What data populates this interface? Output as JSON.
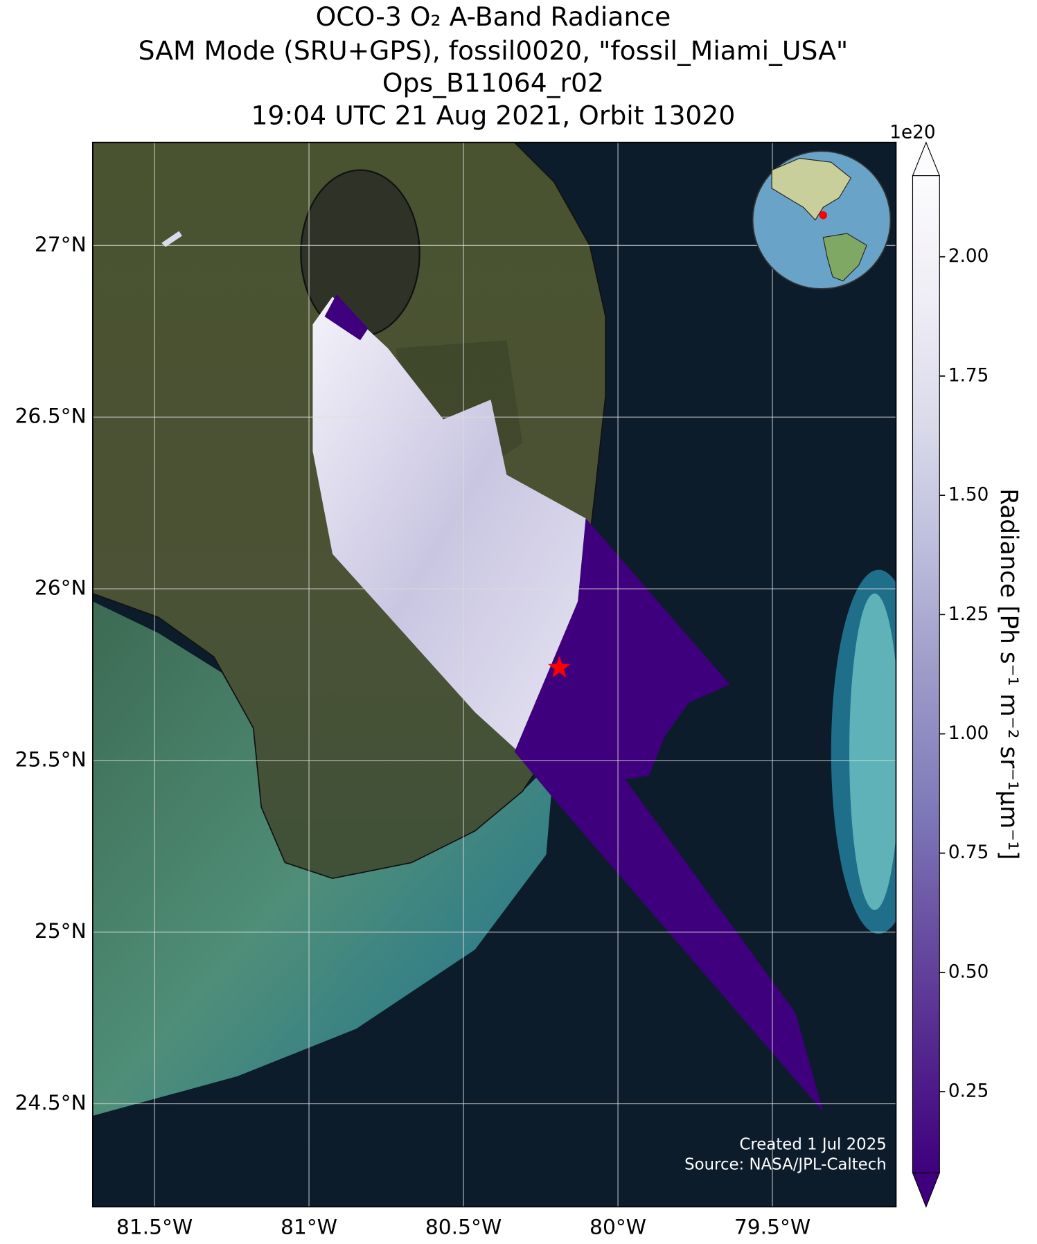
{
  "chart_data": {
    "type": "map",
    "title": [
      "OCO-3 O₂ A-Band Radiance",
      "SAM Mode (SRU+GPS), fossil0020, \"fossil_Miami_USA\"",
      "Ops_B11064_r02",
      "19:04 UTC 21 Aug 2021, Orbit 13020"
    ],
    "xlim": [
      -81.7,
      -79.1
    ],
    "ylim": [
      24.2,
      27.3
    ],
    "xticks": [
      {
        "value": -81.5,
        "label": "81.5°W"
      },
      {
        "value": -81,
        "label": "81°W"
      },
      {
        "value": -80.5,
        "label": "80.5°W"
      },
      {
        "value": -80,
        "label": "80°W"
      },
      {
        "value": -79.5,
        "label": "79.5°W"
      }
    ],
    "yticks": [
      {
        "value": 27,
        "label": "27°N"
      },
      {
        "value": 26.5,
        "label": "26.5°N"
      },
      {
        "value": 26,
        "label": "26°N"
      },
      {
        "value": 25.5,
        "label": "25.5°N"
      },
      {
        "value": 25,
        "label": "25°N"
      },
      {
        "value": 24.5,
        "label": "24.5°N"
      }
    ],
    "grid": true,
    "target": {
      "x": -80.19,
      "y": 25.77,
      "color": "#ff0000"
    },
    "colorbar": {
      "label": "Radiance [Ph s⁻¹ m⁻² sr⁻¹μm⁻¹]",
      "offset_label": "1e20",
      "lim": [
        0.08,
        2.17
      ],
      "ticks": [
        0.25,
        {
          "value": 0.5,
          "label": "0.50"
        },
        0.75,
        {
          "value": 1,
          "label": "1.00"
        },
        1.25,
        {
          "value": 1.5,
          "label": "1.50"
        },
        1.75,
        {
          "value": 2,
          "label": "2.00"
        }
      ],
      "colors": [
        "#3f007d",
        "#54278f",
        "#6a51a3",
        "#807dba",
        "#9e9ac8",
        "#bcbddc",
        "#dadaeb",
        "#efedf5",
        "#fcfbfd"
      ]
    },
    "credits": [
      "Created 1 Jul 2025",
      "Source: NASA/JPL-Caltech"
    ]
  }
}
